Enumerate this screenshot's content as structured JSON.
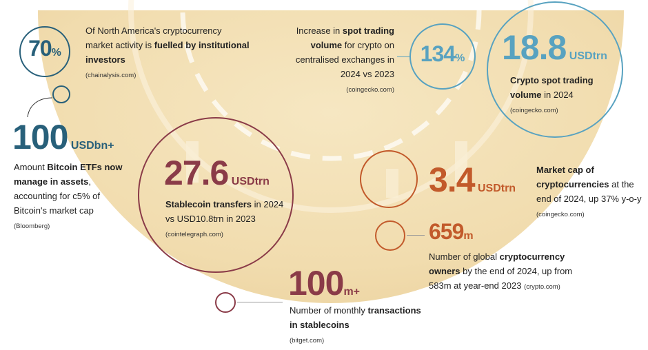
{
  "colors": {
    "teal": "#28607a",
    "sky": "#58a2c0",
    "orange": "#c25a2b",
    "maroon": "#8a3b48",
    "gold": "#f0dcae"
  },
  "stats": {
    "na": {
      "value": "70",
      "unit": "%",
      "pre": "Of North America's cryptocurrency market activity is ",
      "bold": "fuelled by institutional investors",
      "source": "(chainalysis.com)"
    },
    "etf": {
      "value": "100",
      "unit": "USDbn+",
      "pre": "Amount ",
      "bold": "Bitcoin ETFs now manage in assets",
      "post": ", accounting for c5% of Bitcoin's market cap",
      "source": "(Bloomberg)"
    },
    "spot_growth": {
      "value": "134",
      "unit": "%",
      "pre": "Increase in ",
      "bold": "spot trading volume",
      "post": " for crypto on centralised exchanges in 2024 vs 2023",
      "source": "(coingecko.com)"
    },
    "spot_volume": {
      "value": "18.8",
      "unit": "USDtrn",
      "bold": "Crypto spot trading volume",
      "post": " in 2024",
      "source": "(coingecko.com)"
    },
    "stablecoin": {
      "value": "27.6",
      "unit": "USDtrn",
      "bold": "Stablecoin transfers",
      "post": " in 2024 vs USD10.8trn in 2023",
      "source": "(cointelegraph.com)"
    },
    "market_cap": {
      "value": "3.4",
      "unit": "USDtrn",
      "bold": "Market cap of cryptocurrencies",
      "post": " at the end of 2024, up 37% y-o-y",
      "source": "(coingecko.com)"
    },
    "owners": {
      "value": "659",
      "unit": "m",
      "pre": "Number of global ",
      "bold": "cryptocurrency owners",
      "post": " by the end of 2024, up from 583m at year-end 2023",
      "source": "(crypto.com)"
    },
    "transactions": {
      "value": "100",
      "unit": "m+",
      "pre": "Number of monthly ",
      "bold": "transactions in stablecoins",
      "source": "(bitget.com)"
    }
  }
}
